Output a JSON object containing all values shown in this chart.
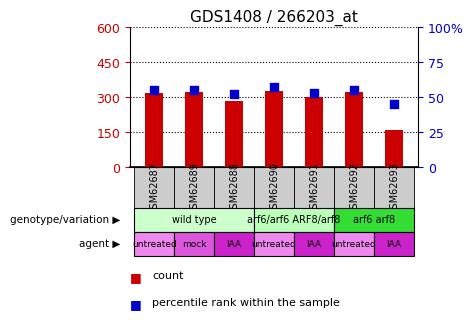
{
  "title": "GDS1408 / 266203_at",
  "samples": [
    "GSM62687",
    "GSM62689",
    "GSM62688",
    "GSM62690",
    "GSM62691",
    "GSM62692",
    "GSM62693"
  ],
  "counts": [
    320,
    322,
    285,
    328,
    300,
    322,
    160
  ],
  "percentiles": [
    55,
    55,
    52,
    57,
    53,
    55,
    45
  ],
  "left_ylim": [
    0,
    600
  ],
  "left_yticks": [
    0,
    150,
    300,
    450,
    600
  ],
  "right_ylim": [
    0,
    100
  ],
  "right_yticks": [
    0,
    25,
    50,
    75,
    100
  ],
  "right_yticklabels": [
    "0",
    "25",
    "50",
    "75",
    "100%"
  ],
  "bar_color": "#cc0000",
  "point_color": "#0000cc",
  "left_tick_color": "#cc0000",
  "right_tick_color": "#0000cc",
  "genotype_groups": [
    {
      "label": "wild type",
      "span": [
        0,
        3
      ],
      "color": "#ccffcc"
    },
    {
      "label": "arf6/arf6 ARF8/arf8",
      "span": [
        3,
        5
      ],
      "color": "#bbffbb"
    },
    {
      "label": "arf6 arf8",
      "span": [
        5,
        7
      ],
      "color": "#33dd33"
    }
  ],
  "agent_groups": [
    {
      "label": "untreated",
      "span": [
        0,
        1
      ],
      "color": "#ee88ee"
    },
    {
      "label": "mock",
      "span": [
        1,
        2
      ],
      "color": "#dd55dd"
    },
    {
      "label": "IAA",
      "span": [
        2,
        3
      ],
      "color": "#cc22cc"
    },
    {
      "label": "untreated",
      "span": [
        3,
        4
      ],
      "color": "#ee88ee"
    },
    {
      "label": "IAA",
      "span": [
        4,
        5
      ],
      "color": "#cc22cc"
    },
    {
      "label": "untreated",
      "span": [
        5,
        6
      ],
      "color": "#ee88ee"
    },
    {
      "label": "IAA",
      "span": [
        6,
        7
      ],
      "color": "#cc22cc"
    }
  ],
  "sample_box_color": "#cccccc",
  "grid_color": "black",
  "grid_style": "dotted",
  "bar_width": 0.45,
  "point_size": 35,
  "xlabel_fontsize": 7,
  "ylabel_fontsize": 9,
  "title_fontsize": 11,
  "annotation_fontsize": 8,
  "legend_fontsize": 8
}
